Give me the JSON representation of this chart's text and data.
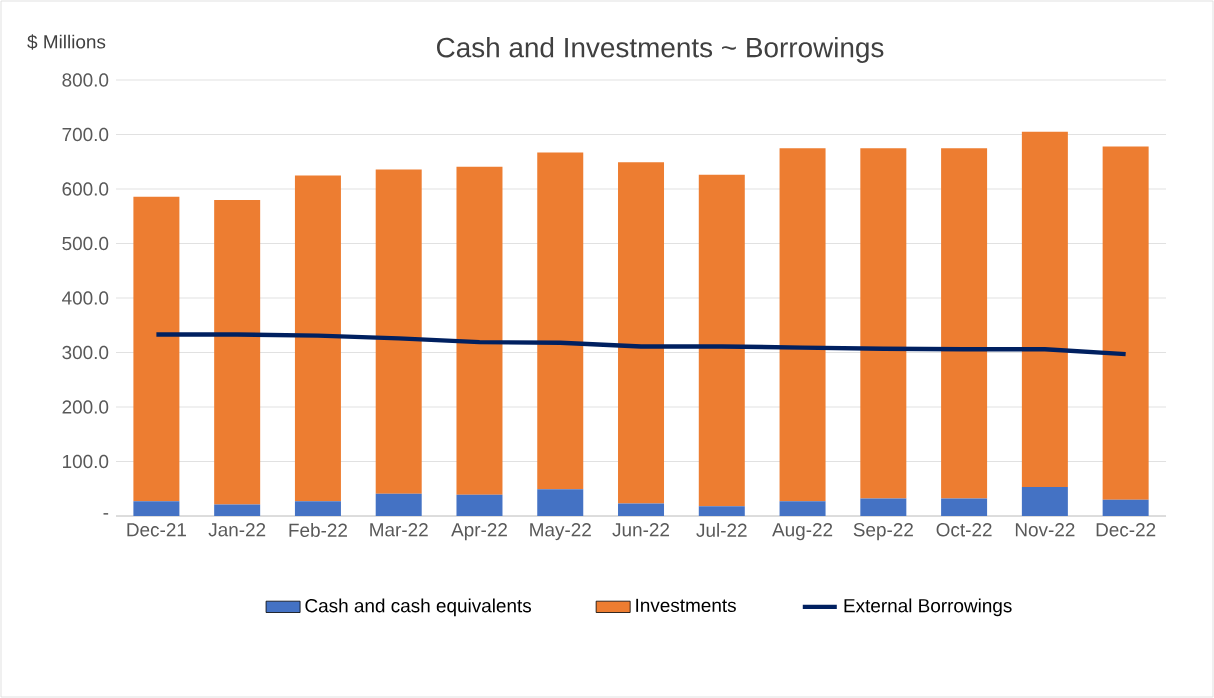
{
  "chart_data": {
    "type": "bar",
    "title": "Cash and Investments ~ Borrowings",
    "ylabel": "$ Millions",
    "categories": [
      "Dec-21",
      "Jan-22",
      "Feb-22",
      "Mar-22",
      "Apr-22",
      "May-22",
      "Jun-22",
      "Jul-22",
      "Aug-22",
      "Sep-22",
      "Oct-22",
      "Nov-22",
      "Dec-22"
    ],
    "stacked": true,
    "series": [
      {
        "name": "Cash and cash equivalents",
        "color": "#4472c4",
        "values": [
          27,
          21,
          27,
          41,
          39,
          49,
          23,
          18,
          27,
          32,
          32,
          53,
          30
        ]
      },
      {
        "name": "Investments",
        "color": "#ed7d31",
        "values": [
          559,
          559,
          598,
          595,
          602,
          618,
          626,
          608,
          648,
          643,
          643,
          652,
          648
        ]
      },
      {
        "name": "External Borrowings",
        "type": "line",
        "color": "#002060",
        "values": [
          333,
          333,
          331,
          326,
          319,
          318,
          311,
          311,
          309,
          307,
          306,
          306,
          297
        ]
      }
    ],
    "ylim": [
      0,
      800
    ],
    "yticks": [
      {
        "value": 0,
        "label": "-"
      },
      {
        "value": 100,
        "label": "100.0"
      },
      {
        "value": 200,
        "label": "200.0"
      },
      {
        "value": 300,
        "label": "300.0"
      },
      {
        "value": 400,
        "label": "400.0"
      },
      {
        "value": 500,
        "label": "500.0"
      },
      {
        "value": 600,
        "label": "600.0"
      },
      {
        "value": 700,
        "label": "700.0"
      },
      {
        "value": 800,
        "label": "800.0"
      }
    ],
    "grid": "y",
    "legend": "bottom"
  }
}
